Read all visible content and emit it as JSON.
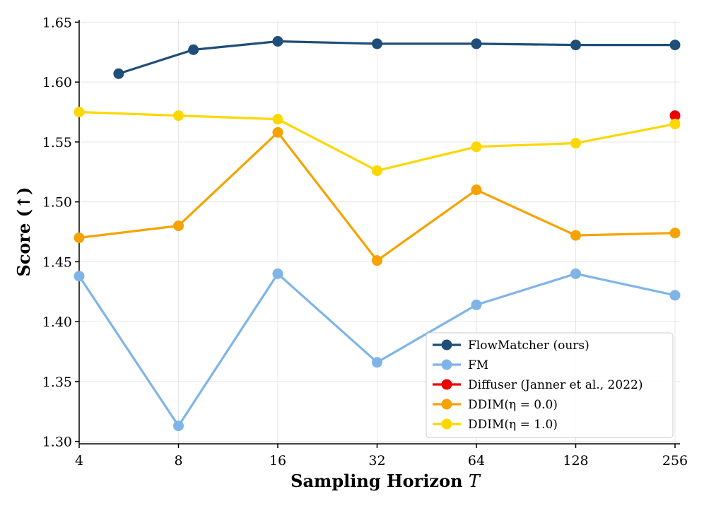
{
  "chart_data": {
    "type": "line",
    "title": "",
    "xlabel": "Sampling Horizon ",
    "xlabel_var": "T",
    "ylabel": "Score (↑)",
    "x_scale": "log2",
    "x_ticks": [
      "4",
      "8",
      "16",
      "32",
      "64",
      "128",
      "256"
    ],
    "x_tick_values": [
      4,
      8,
      16,
      32,
      64,
      128,
      256
    ],
    "xlim": [
      4,
      256
    ],
    "ylim": [
      1.298,
      1.652
    ],
    "y_ticks": [
      "1.30",
      "1.35",
      "1.40",
      "1.45",
      "1.50",
      "1.55",
      "1.60",
      "1.65"
    ],
    "y_tick_values": [
      1.3,
      1.35,
      1.4,
      1.45,
      1.5,
      1.55,
      1.6,
      1.65
    ],
    "grid": true,
    "legend_location": "lower-right",
    "series": [
      {
        "name": "FlowMatcher (ours)",
        "color": "#1f4e79",
        "x": [
          5.27,
          8.88,
          16,
          32,
          64,
          128,
          256
        ],
        "y": [
          1.607,
          1.627,
          1.634,
          1.632,
          1.632,
          1.631,
          1.631
        ]
      },
      {
        "name": "FM",
        "color": "#7fb4e8",
        "x": [
          4,
          8,
          16,
          32,
          64,
          128,
          256
        ],
        "y": [
          1.438,
          1.313,
          1.44,
          1.366,
          1.414,
          1.44,
          1.422
        ]
      },
      {
        "name": "Diffuser (Janner et al., 2022)",
        "color": "#ee0000",
        "x": [
          256
        ],
        "y": [
          1.572
        ]
      },
      {
        "name": "DDIM(η = 0.0)",
        "color": "#f5a300",
        "x": [
          4,
          8,
          16,
          32,
          64,
          128,
          256
        ],
        "y": [
          1.47,
          1.48,
          1.558,
          1.451,
          1.51,
          1.472,
          1.474
        ]
      },
      {
        "name": "DDIM(η = 1.0)",
        "color": "#fdd700",
        "x": [
          4,
          8,
          16,
          32,
          64,
          128,
          256
        ],
        "y": [
          1.575,
          1.572,
          1.569,
          1.526,
          1.546,
          1.549,
          1.565
        ]
      }
    ]
  }
}
